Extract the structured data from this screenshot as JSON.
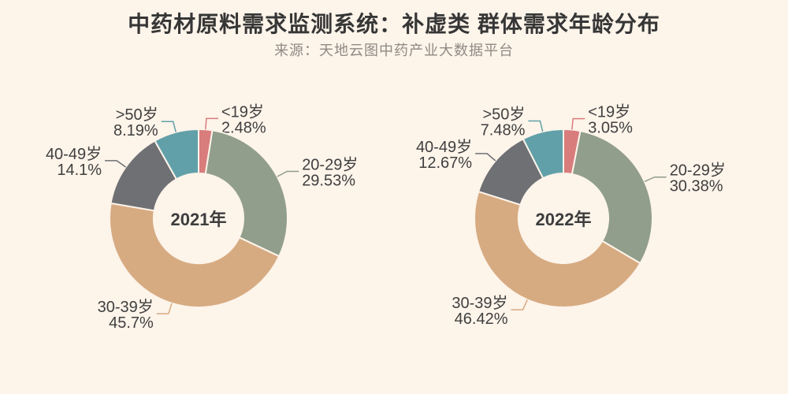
{
  "header": {
    "title": "中药材原料需求监测系统：补虚类 群体需求年龄分布",
    "subtitle": "来源：天地云图中药产业大数据平台"
  },
  "palette": {
    "background": "#fdf4ea",
    "title_color": "#363636",
    "subtitle_color": "#8f8a84",
    "label_color": "#3f3f3f",
    "center_label_color": "#3d3d3d",
    "slice_colors": [
      "#d87c7c",
      "#919e8b",
      "#d7ab82",
      "#6e7074",
      "#61a0a8"
    ]
  },
  "chart_data": {
    "type": "pie",
    "variant": "donut",
    "title": "中药材原料需求监测系统：补虚类 群体需求年龄分布",
    "subtitle": "来源：天地云图中药产业大数据平台",
    "unit": "%",
    "start_angle": "top",
    "direction": "clockwise",
    "legend_position": "none",
    "categories": [
      "<19岁",
      "20-29岁",
      "30-39岁",
      "40-49岁",
      ">50岁"
    ],
    "charts": [
      {
        "center_label": "2021年",
        "values": [
          2.48,
          29.53,
          45.7,
          14.1,
          8.19
        ],
        "value_labels": [
          "2.48%",
          "29.53%",
          "45.7%",
          "14.1%",
          "8.19%"
        ]
      },
      {
        "center_label": "2022年",
        "values": [
          3.05,
          30.38,
          46.42,
          12.67,
          7.48
        ],
        "value_labels": [
          "3.05%",
          "30.38%",
          "46.42%",
          "12.67%",
          "7.48%"
        ]
      }
    ]
  }
}
